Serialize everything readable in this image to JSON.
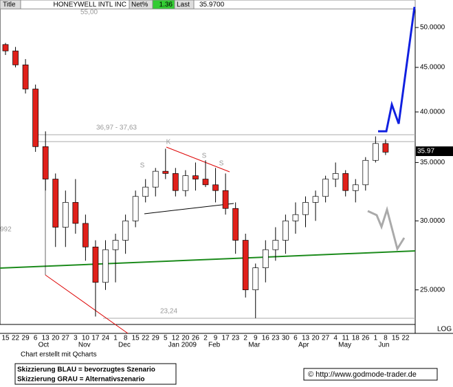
{
  "header": {
    "title": "Title",
    "symbol": "HONEYWELL INTL INC",
    "net_label": "Net%",
    "net_value": "1.36",
    "last_label": "Last",
    "last_value": "35.9700"
  },
  "chart_data": {
    "type": "candlestick",
    "categories": [
      "15",
      "22",
      "29",
      "6",
      "13",
      "20",
      "27",
      "3",
      "10",
      "17",
      "24",
      "1",
      "8",
      "15",
      "22",
      "29",
      "5",
      "12",
      "20",
      "26",
      "2",
      "9",
      "17",
      "23",
      "2",
      "9",
      "16",
      "23",
      "30",
      "6",
      "13",
      "20",
      "27",
      "4",
      "11",
      "18",
      "26",
      "1",
      "8",
      "15",
      "22"
    ],
    "months": [
      null,
      null,
      null,
      "Oct",
      null,
      null,
      null,
      "Nov",
      null,
      null,
      null,
      "Dec",
      null,
      null,
      null,
      null,
      "Jan 2009",
      null,
      null,
      null,
      "Feb",
      null,
      null,
      null,
      "Mar",
      null,
      null,
      null,
      null,
      "Apr",
      null,
      null,
      null,
      "May",
      null,
      null,
      null,
      "Jun",
      null,
      null,
      null
    ],
    "open": [
      47.8,
      47,
      45.3,
      42.5,
      36.5,
      33.5,
      29.5,
      31.5,
      29.8,
      28,
      25.5,
      27.8,
      28.5,
      30,
      32,
      32.8,
      34.2,
      34,
      32.5,
      33.8,
      33.5,
      33,
      32.5,
      31,
      28.5,
      25,
      26.5,
      27.8,
      28.5,
      30,
      30.5,
      31.5,
      32,
      33.5,
      34,
      32.5,
      33,
      35.2,
      36.8,
      null,
      null
    ],
    "high": [
      48,
      47.5,
      46,
      43,
      38,
      34,
      32.5,
      33.5,
      30.5,
      28.5,
      28.5,
      29,
      30.5,
      32.5,
      33.5,
      34.5,
      36.3,
      34.5,
      34.3,
      35,
      35.2,
      34.5,
      34,
      31.5,
      29,
      26.8,
      28.5,
      29.5,
      30.5,
      31.5,
      32,
      32.5,
      33.8,
      35,
      34.3,
      33.5,
      35.5,
      37.5,
      37.2,
      null,
      null
    ],
    "low": [
      46.5,
      45,
      42,
      36,
      32.5,
      28,
      28,
      29,
      27,
      23.3,
      25,
      25.5,
      27.5,
      29.5,
      31.5,
      32,
      33.5,
      32,
      32,
      32.5,
      32.8,
      31.5,
      30.5,
      27.5,
      24.5,
      23.2,
      25.5,
      27,
      27.5,
      29,
      29.5,
      30,
      31.5,
      32.8,
      32,
      31.5,
      32.5,
      35,
      35.7,
      null,
      null
    ],
    "close": [
      47,
      45.3,
      42.5,
      36.5,
      33.5,
      29.5,
      31.5,
      29.8,
      28,
      25.5,
      27.8,
      28.5,
      30,
      32,
      32.8,
      34.2,
      34,
      32.5,
      33.8,
      33.5,
      33,
      32.5,
      31,
      28.5,
      25,
      26.5,
      27.8,
      28.5,
      30,
      30.5,
      31.5,
      32,
      33.5,
      34,
      32.5,
      33,
      35.2,
      36.8,
      35.97,
      null,
      null
    ],
    "up_color": "#ffffff",
    "down_color": "#e0201a",
    "log": true,
    "ylim": [
      22.9,
      53.77
    ],
    "yticks": [
      {
        "value": 50,
        "label": "50.0000"
      },
      {
        "value": 45,
        "label": "45.0000"
      },
      {
        "value": 40,
        "label": "40.0000"
      },
      {
        "value": 35,
        "label": "35.0000"
      },
      {
        "value": 30,
        "label": "30.0000"
      },
      {
        "value": 25,
        "label": "25.0000"
      }
    ],
    "scale_label": "LOG",
    "annotations": {
      "resistance": "36,97 - 37,63",
      "support": "23,24",
      "k": "K",
      "s": "S",
      "left_axis": "992",
      "top_faded": "55,00"
    }
  },
  "footer": {
    "credit": "Chart erstellt mit Qcharts",
    "legend_blue": "Skizzierung BLAU = bevorzugtes Szenario",
    "legend_grey": "Skizzierung GRAU = Alternativszenario",
    "copyright": "© http://www.godmode-trader.de"
  }
}
